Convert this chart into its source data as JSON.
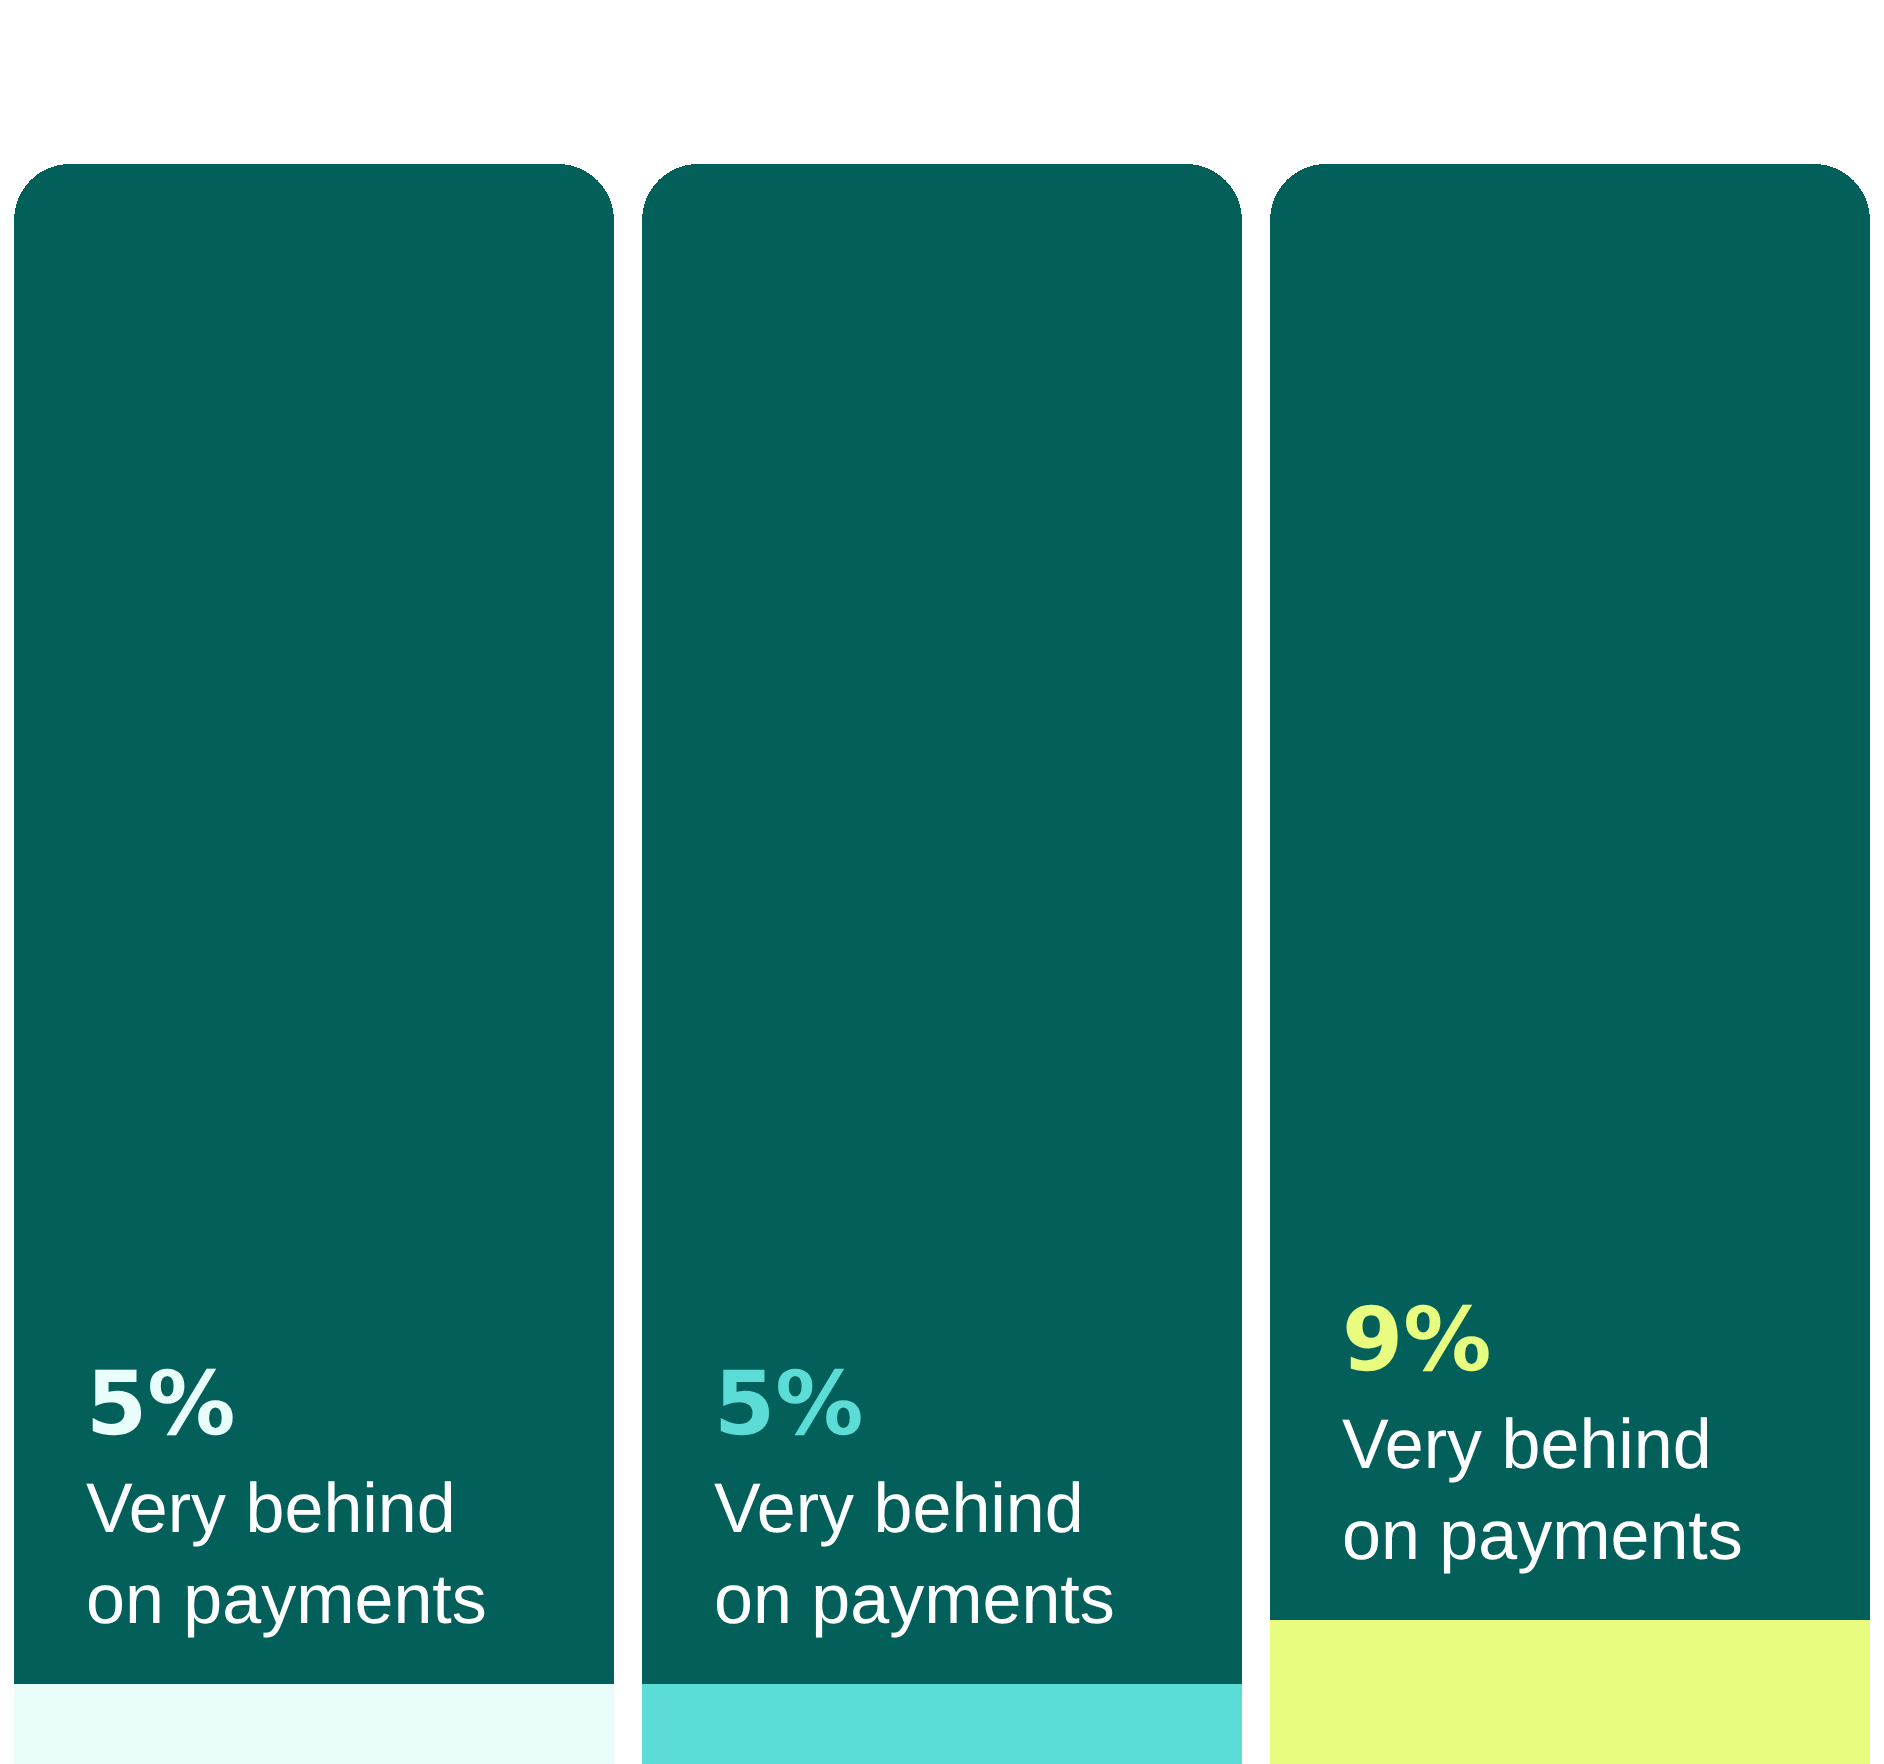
{
  "chart_data": {
    "type": "bar",
    "stacked": true,
    "categories": [
      null,
      null,
      null
    ],
    "ylim": [
      0,
      100
    ],
    "series": [
      {
        "colors": [
          "#e9fdfb",
          "#5cdcd6",
          "#e8fd80"
        ],
        "values": [
          5,
          5,
          9
        ],
        "value_labels": [
          "5%",
          "5%",
          "9%"
        ]
      },
      {
        "color": "#035f5a",
        "values": [
          95,
          95,
          91
        ]
      }
    ],
    "annotations": [
      "Very behind on payments",
      "Very behind on payments",
      "Very behind on payments"
    ]
  }
}
